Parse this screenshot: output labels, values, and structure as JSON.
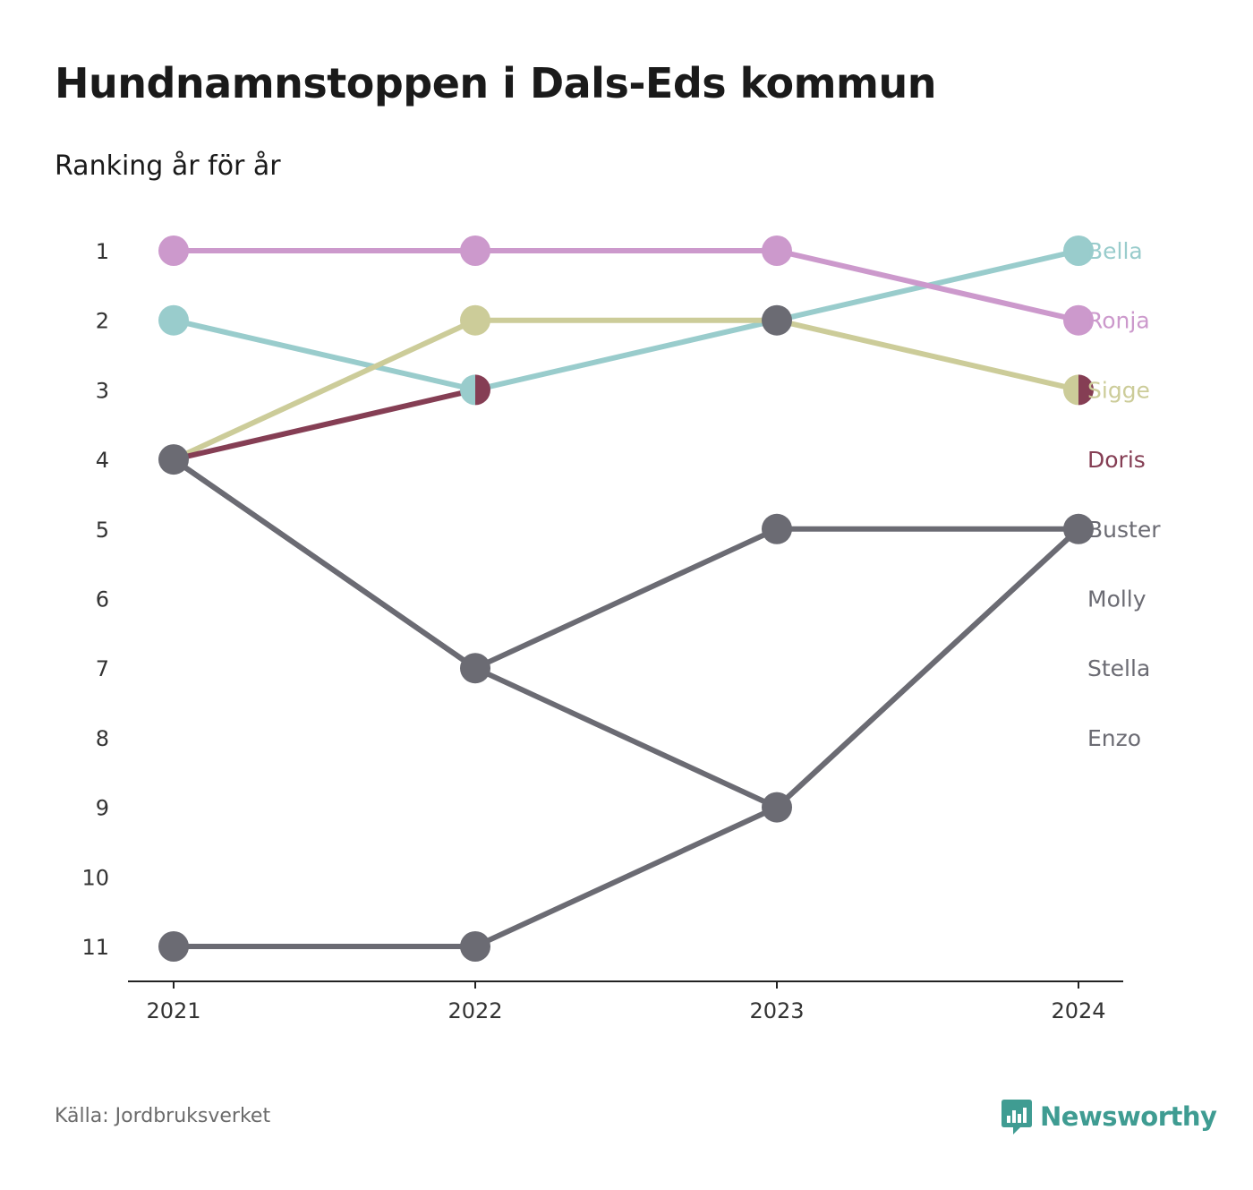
{
  "header": {
    "title": "Hundnamnstoppen i Dals-Eds kommun",
    "subtitle": "Ranking år för år"
  },
  "footer": {
    "source": "Källa: Jordbruksverket",
    "brand": "Newsworthy",
    "brand_icon": "bar-chart-speech-bubble-icon",
    "brand_color": "#3f9c92"
  },
  "chart_data": {
    "type": "line",
    "subtype": "bump",
    "x": [
      "2021",
      "2022",
      "2023",
      "2024"
    ],
    "y_ticks": [
      "1",
      "2",
      "3",
      "4",
      "5",
      "6",
      "7",
      "8",
      "9",
      "10",
      "11"
    ],
    "ylim": [
      1,
      11
    ],
    "y_reversed": true,
    "grid": false,
    "legend": "direct-labels-right",
    "series": [
      {
        "name": "Bella",
        "color": "#99cccc",
        "values": [
          2,
          3,
          2,
          1
        ]
      },
      {
        "name": "Ronja",
        "color": "#cc99cc",
        "values": [
          1,
          1,
          1,
          2
        ]
      },
      {
        "name": "Sigge",
        "color": "#cccc99",
        "values": [
          4,
          2,
          2,
          3
        ]
      },
      {
        "name": "Doris",
        "color": "#853e54",
        "values": [
          4,
          3,
          null,
          3
        ]
      },
      {
        "name": "Buster",
        "color": "#6b6b73",
        "values": [
          11,
          11,
          9,
          5
        ]
      },
      {
        "name": "Molly",
        "color": "#6b6b73",
        "values": [
          4,
          7,
          5,
          5
        ]
      },
      {
        "name": "Stella",
        "color": "#6b6b73",
        "values": [
          4,
          7,
          9,
          5
        ]
      },
      {
        "name": "Enzo",
        "color": "#6b6b73",
        "values": [
          null,
          null,
          2,
          null
        ]
      }
    ]
  }
}
